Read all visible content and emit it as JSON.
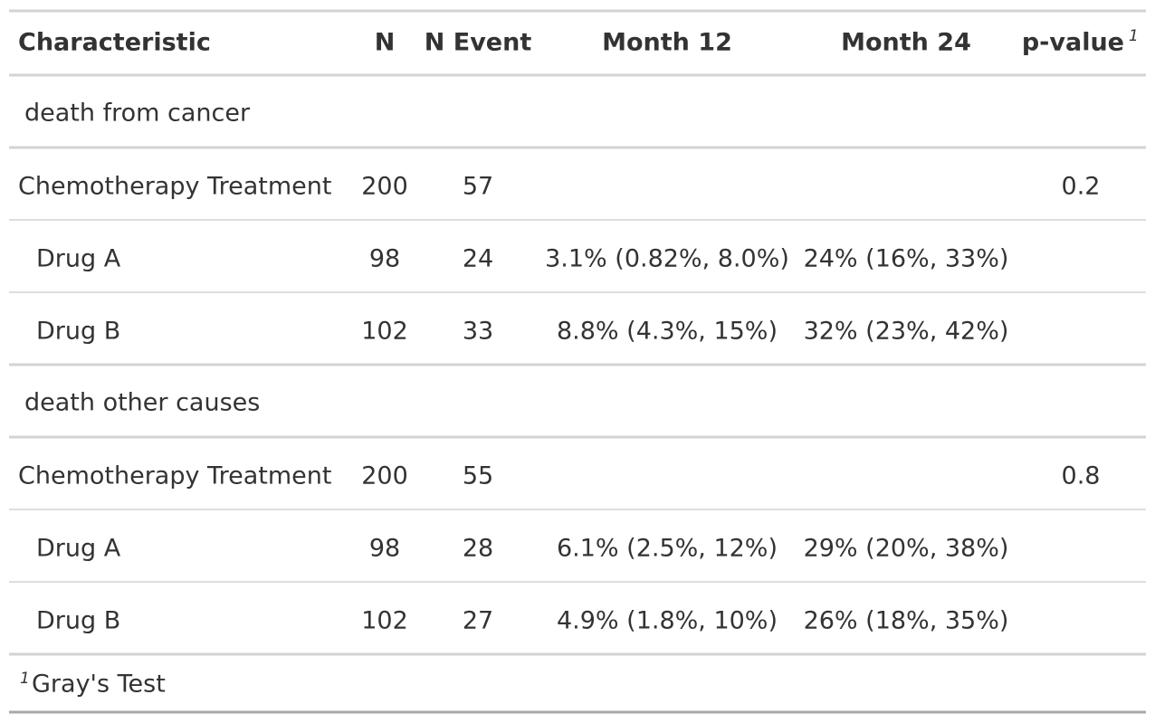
{
  "table": {
    "columns": [
      "Characteristic",
      "N",
      "N Event",
      "Month 12",
      "Month 24",
      "p-value"
    ],
    "header_footnote_mark": "1",
    "groups": [
      {
        "label": "death from cancer",
        "rows": [
          {
            "label": "Chemotherapy Treatment",
            "n": "200",
            "n_event": "57",
            "p_value": "0.2"
          },
          {
            "label": "Drug A",
            "n": "98",
            "n_event": "24",
            "month_12": "3.1% (0.82%, 8.0%)",
            "month_24": "24% (16%, 33%)"
          },
          {
            "label": "Drug B",
            "n": "102",
            "n_event": "33",
            "month_12": "8.8% (4.3%, 15%)",
            "month_24": "32% (23%, 42%)"
          }
        ]
      },
      {
        "label": "death other causes",
        "rows": [
          {
            "label": "Chemotherapy Treatment",
            "n": "200",
            "n_event": "55",
            "p_value": "0.8"
          },
          {
            "label": "Drug A",
            "n": "98",
            "n_event": "28",
            "month_12": "6.1% (2.5%, 12%)",
            "month_24": "29% (20%, 38%)"
          },
          {
            "label": "Drug B",
            "n": "102",
            "n_event": "27",
            "month_12": "4.9% (1.8%, 10%)",
            "month_24": "26% (18%, 35%)"
          }
        ]
      }
    ],
    "footnote": {
      "mark": "1",
      "text": "Gray's Test"
    }
  }
}
